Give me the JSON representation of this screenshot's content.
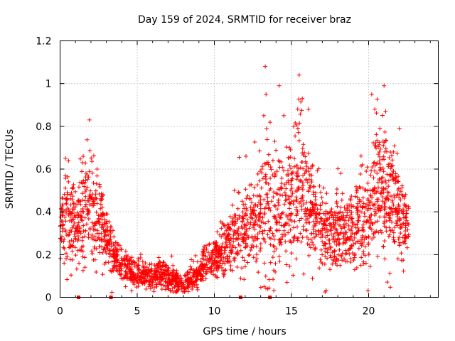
{
  "chart_data": {
    "type": "scatter",
    "title": "Day 159 of 2024, SRMTID for receiver braz",
    "xlabel": "GPS time / hours",
    "ylabel": "SRMTID / TECUs",
    "xlim": [
      0,
      24.5
    ],
    "ylim": [
      0,
      1.2
    ],
    "x_ticks": [
      0,
      5,
      10,
      15,
      20
    ],
    "x_tick_labels": [
      "0",
      "5",
      "10",
      "15",
      "20"
    ],
    "y_ticks": [
      0,
      0.2,
      0.4,
      0.6,
      0.8,
      1.0,
      1.2
    ],
    "y_tick_labels": [
      "0",
      "0.2",
      "0.4",
      "0.6",
      "0.8",
      "1",
      "1.2"
    ],
    "grid": true,
    "marker": "plus",
    "color": "#ff0000",
    "gap_markers_x": [
      1.2,
      3.3,
      11.7,
      13.6
    ],
    "series": [
      {
        "name": "SRMTID",
        "envelope": [
          {
            "x": 0.0,
            "mean": 0.33,
            "spread": 0.09
          },
          {
            "x": 0.5,
            "mean": 0.38,
            "spread": 0.14
          },
          {
            "x": 1.0,
            "mean": 0.34,
            "spread": 0.1
          },
          {
            "x": 1.5,
            "mean": 0.4,
            "spread": 0.14
          },
          {
            "x": 1.8,
            "mean": 0.45,
            "spread": 0.16
          },
          {
            "x": 2.3,
            "mean": 0.4,
            "spread": 0.13
          },
          {
            "x": 2.7,
            "mean": 0.34,
            "spread": 0.1
          },
          {
            "x": 3.2,
            "mean": 0.24,
            "spread": 0.07
          },
          {
            "x": 3.8,
            "mean": 0.17,
            "spread": 0.05
          },
          {
            "x": 4.5,
            "mean": 0.12,
            "spread": 0.04
          },
          {
            "x": 5.5,
            "mean": 0.1,
            "spread": 0.035
          },
          {
            "x": 6.5,
            "mean": 0.11,
            "spread": 0.04
          },
          {
            "x": 7.3,
            "mean": 0.09,
            "spread": 0.035
          },
          {
            "x": 8.0,
            "mean": 0.06,
            "spread": 0.025
          },
          {
            "x": 8.6,
            "mean": 0.09,
            "spread": 0.035
          },
          {
            "x": 9.3,
            "mean": 0.15,
            "spread": 0.05
          },
          {
            "x": 10.0,
            "mean": 0.2,
            "spread": 0.06
          },
          {
            "x": 11.0,
            "mean": 0.26,
            "spread": 0.09
          },
          {
            "x": 12.0,
            "mean": 0.32,
            "spread": 0.12
          },
          {
            "x": 12.8,
            "mean": 0.35,
            "spread": 0.15
          },
          {
            "x": 13.5,
            "mean": 0.45,
            "spread": 0.22
          },
          {
            "x": 14.2,
            "mean": 0.42,
            "spread": 0.18
          },
          {
            "x": 14.8,
            "mean": 0.45,
            "spread": 0.17
          },
          {
            "x": 15.5,
            "mean": 0.55,
            "spread": 0.2
          },
          {
            "x": 16.2,
            "mean": 0.4,
            "spread": 0.14
          },
          {
            "x": 17.0,
            "mean": 0.33,
            "spread": 0.11
          },
          {
            "x": 18.0,
            "mean": 0.3,
            "spread": 0.1
          },
          {
            "x": 19.0,
            "mean": 0.32,
            "spread": 0.1
          },
          {
            "x": 20.0,
            "mean": 0.38,
            "spread": 0.14
          },
          {
            "x": 20.5,
            "mean": 0.5,
            "spread": 0.2
          },
          {
            "x": 21.0,
            "mean": 0.55,
            "spread": 0.2
          },
          {
            "x": 21.6,
            "mean": 0.48,
            "spread": 0.16
          },
          {
            "x": 22.1,
            "mean": 0.36,
            "spread": 0.11
          },
          {
            "x": 22.6,
            "mean": 0.35,
            "spread": 0.08
          }
        ],
        "peaks": [
          {
            "x": 0.35,
            "y": 0.65
          },
          {
            "x": 1.5,
            "y": 0.66
          },
          {
            "x": 1.9,
            "y": 0.83
          },
          {
            "x": 2.4,
            "y": 0.6
          },
          {
            "x": 13.2,
            "y": 0.85
          },
          {
            "x": 13.3,
            "y": 1.08
          },
          {
            "x": 13.35,
            "y": 0.95
          },
          {
            "x": 14.2,
            "y": 0.99
          },
          {
            "x": 14.5,
            "y": 0.85
          },
          {
            "x": 15.5,
            "y": 1.04
          },
          {
            "x": 15.7,
            "y": 0.93
          },
          {
            "x": 16.1,
            "y": 0.88
          },
          {
            "x": 20.2,
            "y": 0.95
          },
          {
            "x": 20.4,
            "y": 0.88
          },
          {
            "x": 21.0,
            "y": 0.99
          },
          {
            "x": 21.1,
            "y": 0.87
          },
          {
            "x": 22.0,
            "y": 0.79
          },
          {
            "x": 12.05,
            "y": 0.66
          },
          {
            "x": 11.3,
            "y": 0.5
          },
          {
            "x": 18.2,
            "y": 0.58
          },
          {
            "x": 19.6,
            "y": 0.62
          }
        ],
        "point_count": 2600
      }
    ]
  }
}
